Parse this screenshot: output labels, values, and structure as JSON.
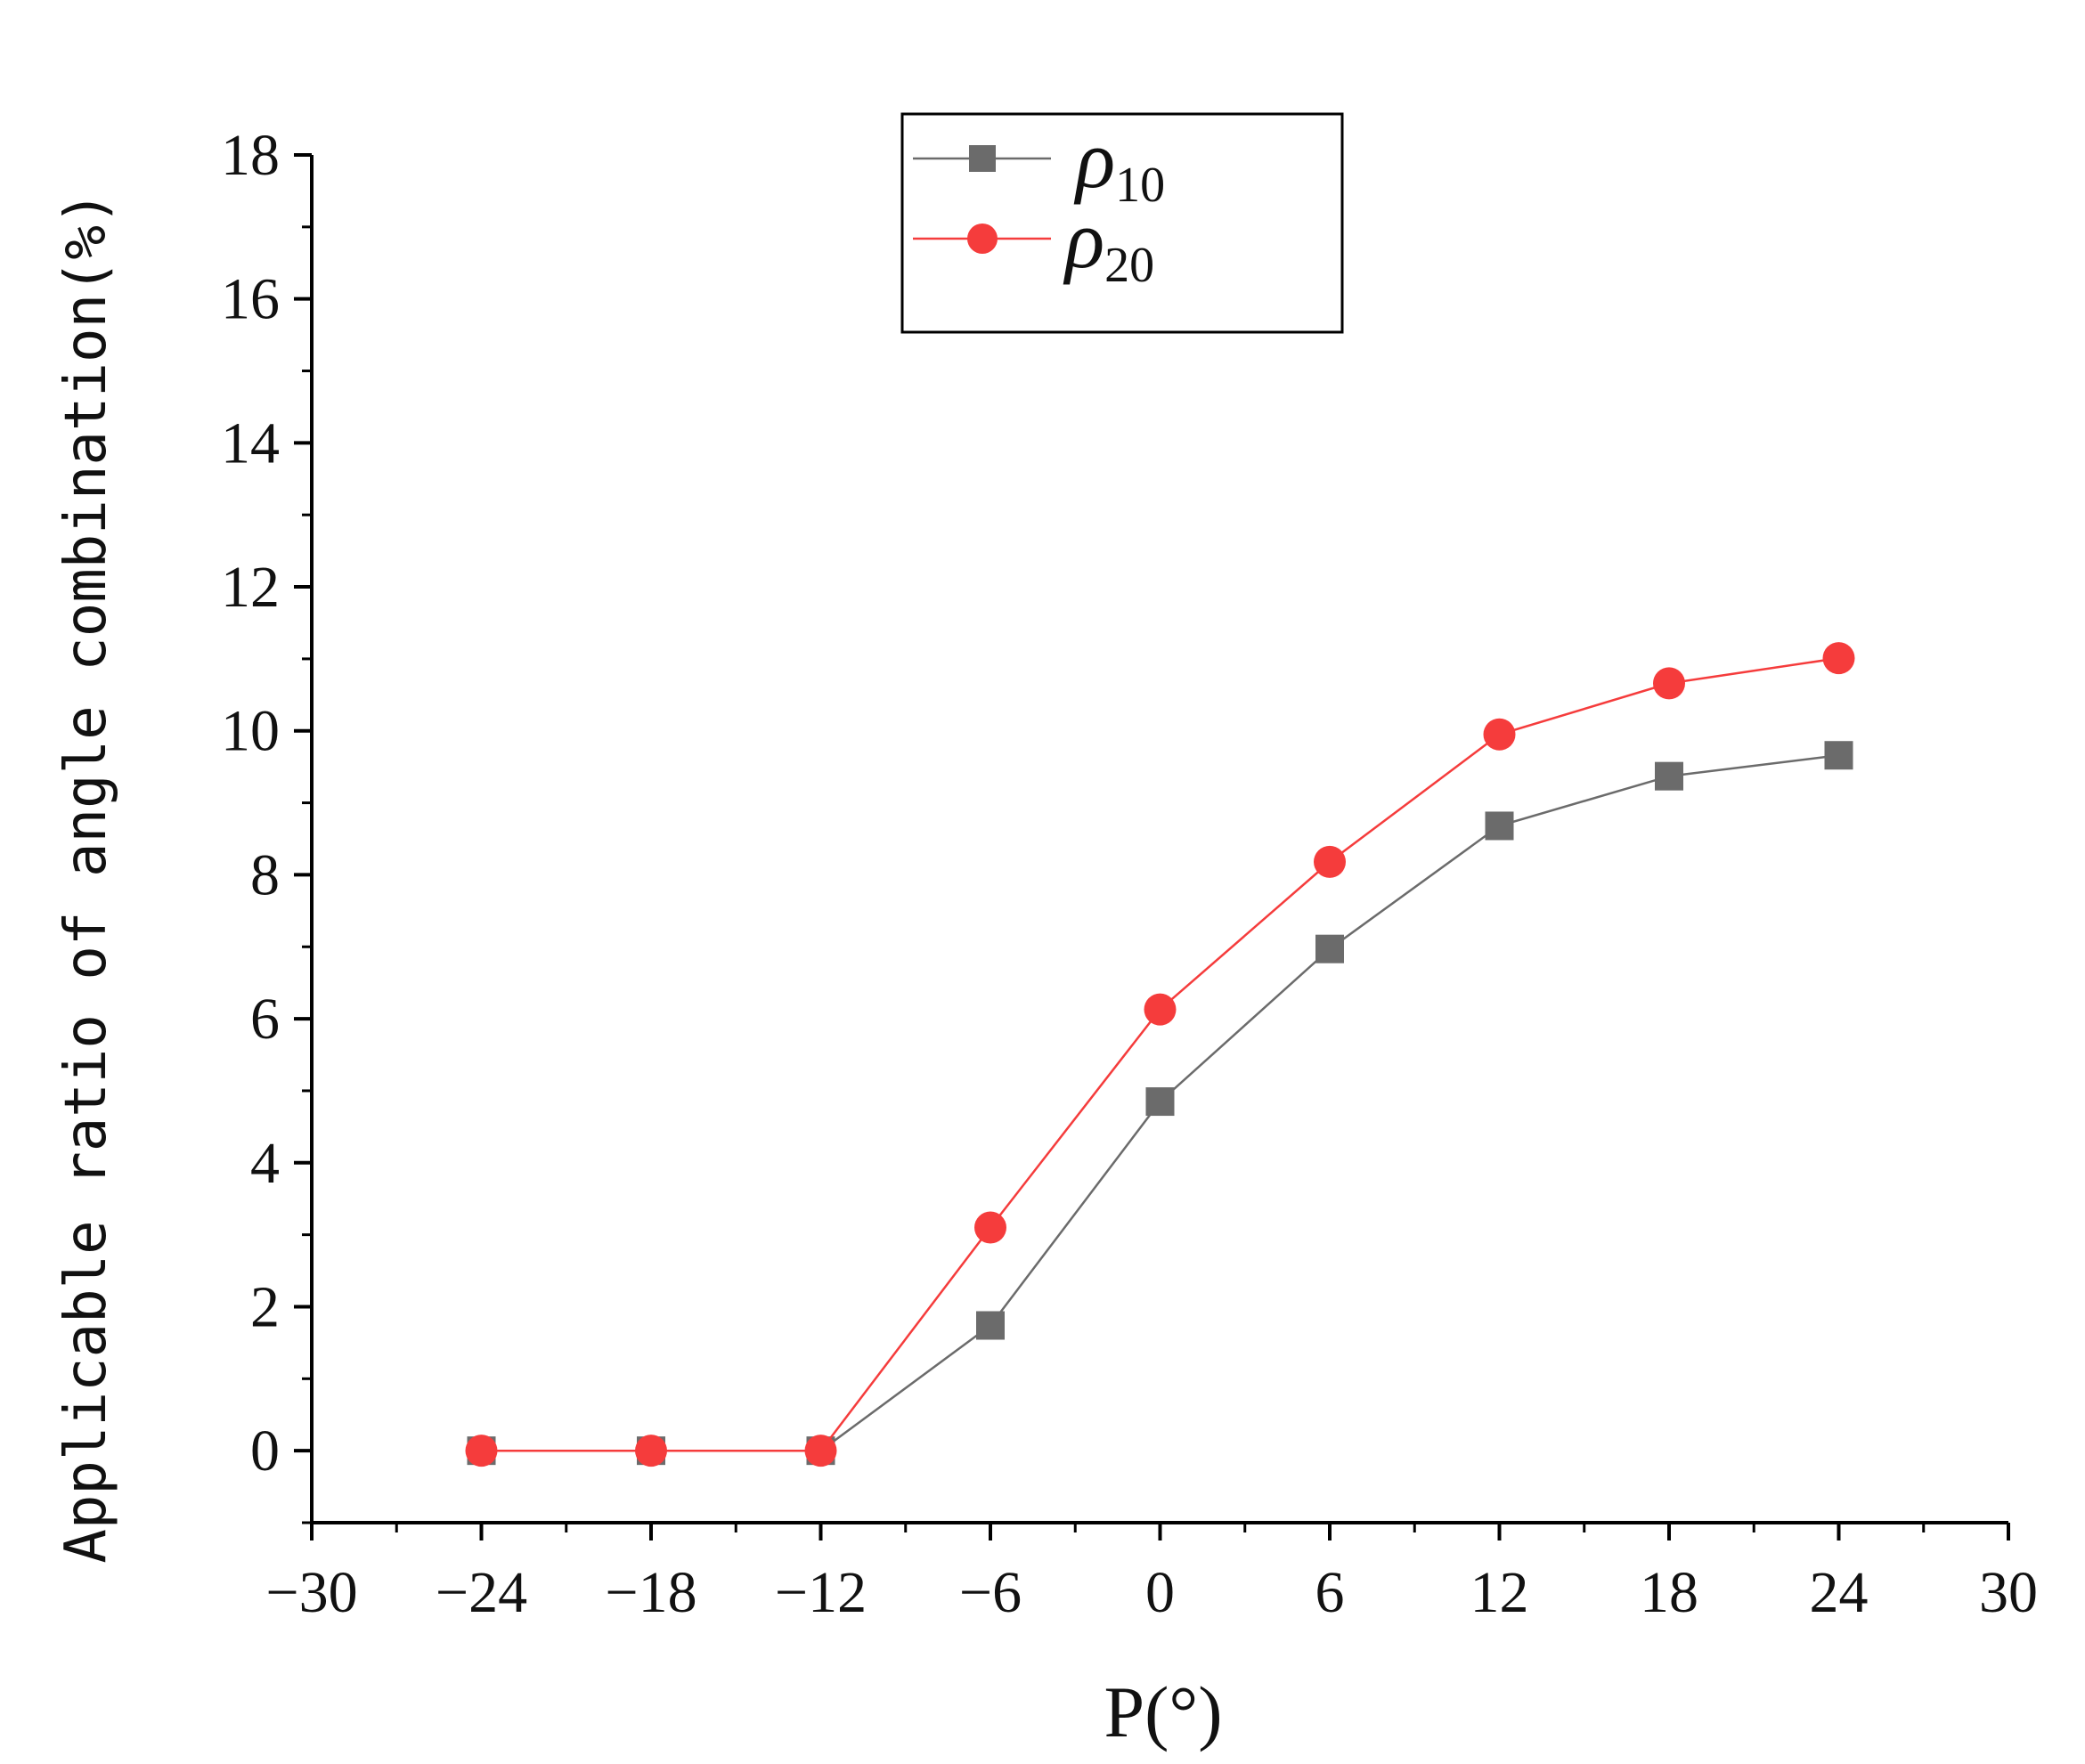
{
  "chart_data": {
    "type": "line",
    "title": "",
    "xlabel": "P(°)",
    "ylabel": "Applicable ratio of angle combination(%)",
    "xlim": [
      -30,
      30
    ],
    "ylim": [
      -1,
      18
    ],
    "x_ticks": [
      -30,
      -24,
      -18,
      -12,
      -6,
      0,
      6,
      12,
      18,
      24,
      30
    ],
    "x_tick_labels": [
      "−30",
      "−24",
      "−18",
      "−12",
      "−6",
      "0",
      "6",
      "12",
      "18",
      "24",
      "30"
    ],
    "y_ticks": [
      0,
      2,
      4,
      6,
      8,
      10,
      12,
      14,
      16,
      18
    ],
    "y_tick_labels": [
      "0",
      "2",
      "4",
      "6",
      "8",
      "10",
      "12",
      "14",
      "16",
      "18"
    ],
    "grid": false,
    "legend_position": "top-center",
    "x": [
      -24,
      -18,
      -12,
      -6,
      0,
      6,
      12,
      18,
      24
    ],
    "series": [
      {
        "name": "ρ10",
        "label_symbol": "ρ",
        "label_sub": "10",
        "color": "#6b6b6b",
        "marker": "square",
        "values": [
          0,
          0,
          0,
          1.74,
          4.85,
          6.97,
          8.68,
          9.37,
          9.66
        ]
      },
      {
        "name": "ρ20",
        "label_symbol": "ρ",
        "label_sub": "20",
        "color": "#f53c3c",
        "marker": "circle",
        "values": [
          0,
          0,
          0,
          3.1,
          6.13,
          8.18,
          9.95,
          10.66,
          11.01
        ]
      }
    ]
  }
}
